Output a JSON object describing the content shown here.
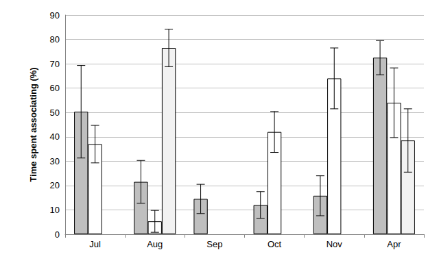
{
  "chart_data": {
    "type": "bar",
    "y_label": "Time spent associating (%)",
    "categories": [
      "Jul",
      "Aug",
      "Sep",
      "Oct",
      "Nov",
      "Apr"
    ],
    "series": [
      {
        "color": "#bfbfbf",
        "values": [
          50.3,
          21.5,
          14.5,
          12,
          15.8,
          72.5
        ],
        "errors": [
          19,
          8.8,
          6,
          5.5,
          8.2,
          7
        ]
      },
      {
        "color": "#ffffff",
        "values": [
          37,
          5.3,
          null,
          42,
          64,
          54
        ],
        "errors": [
          7.7,
          4.5,
          null,
          8.4,
          12.5,
          14.3
        ]
      },
      {
        "color": "#f2f2f2",
        "values": [
          null,
          76.5,
          null,
          null,
          null,
          38.5
        ],
        "errors": [
          null,
          7.7,
          null,
          null,
          null,
          13
        ]
      }
    ],
    "ylim": [
      0,
      90
    ],
    "yticks": [
      0,
      10,
      20,
      30,
      40,
      50,
      60,
      70,
      80,
      90
    ],
    "grid": true
  }
}
